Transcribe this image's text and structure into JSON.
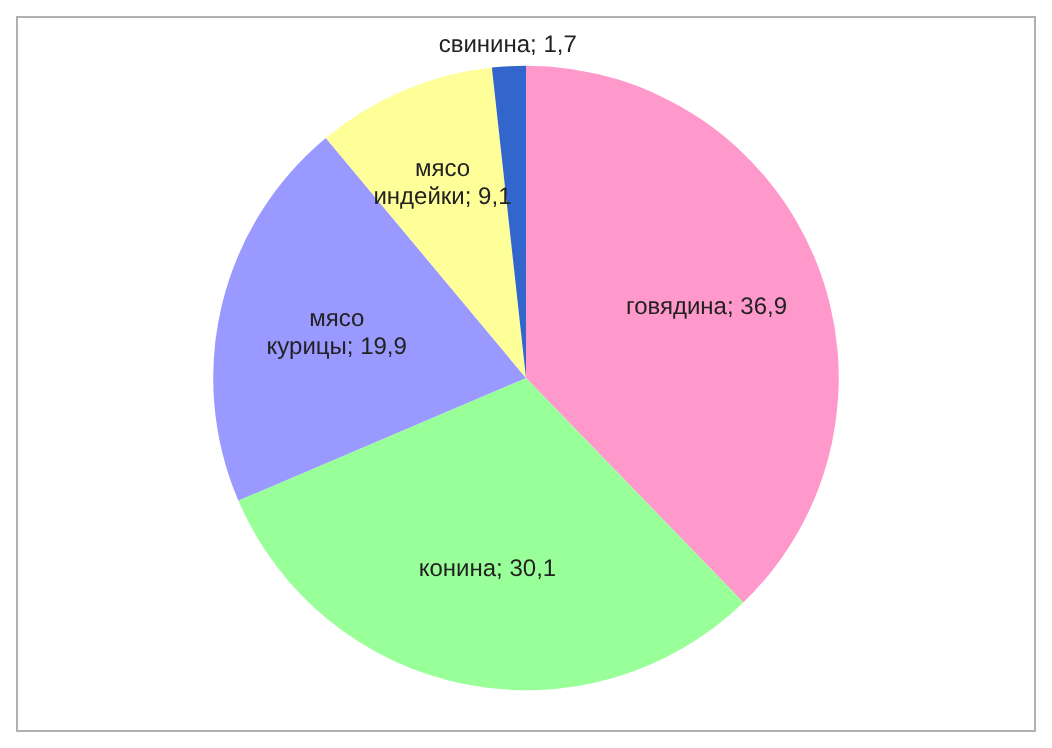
{
  "chart_data": {
    "type": "pie",
    "categories": [
      "говядина",
      "конина",
      "мясо курицы",
      "мясо индейки",
      "свинина"
    ],
    "values": [
      36.9,
      30.1,
      19.9,
      9.1,
      1.7
    ],
    "value_labels": [
      "36,9",
      "30,1",
      "19,9",
      "9,1",
      "1,7"
    ],
    "colors": [
      "#ff99cc",
      "#99ff99",
      "#9999ff",
      "#ffff99",
      "#3366cc"
    ],
    "legend": false
  }
}
